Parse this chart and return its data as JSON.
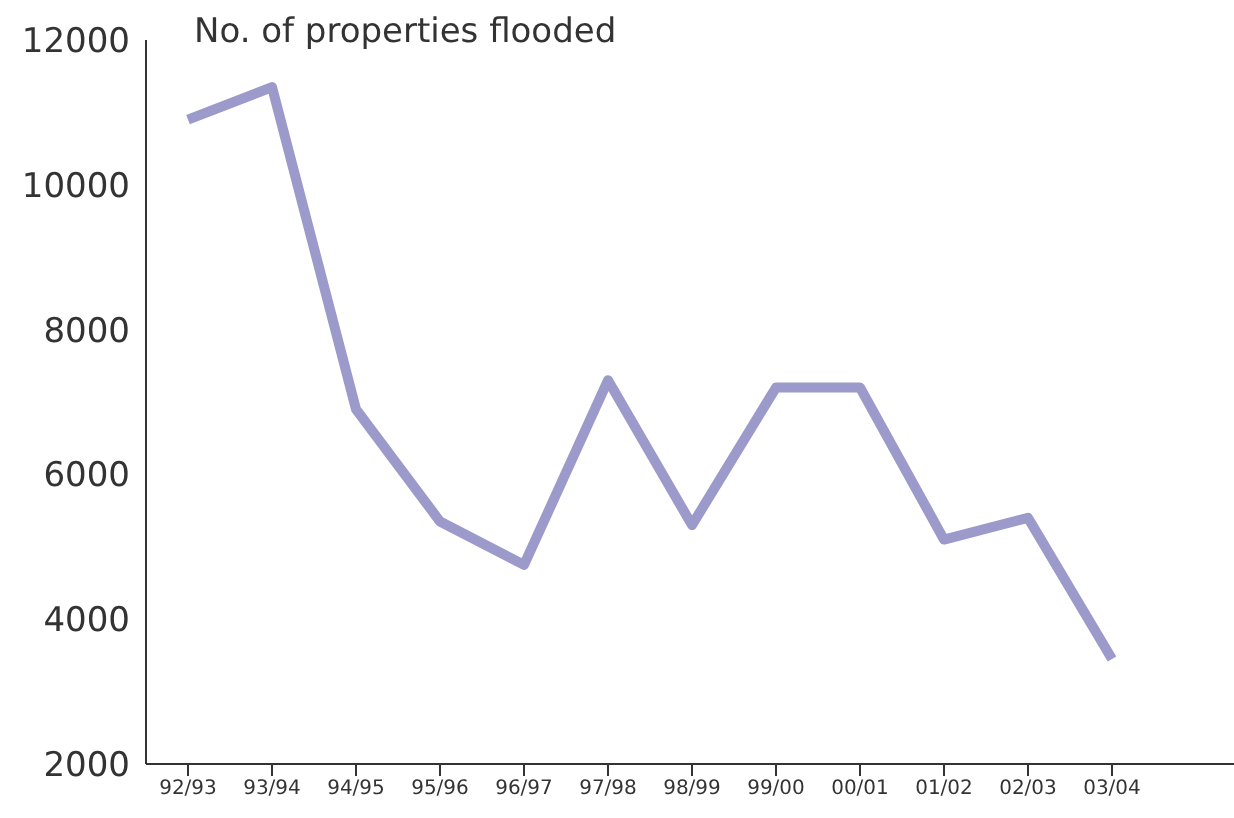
{
  "chart_data": {
    "type": "line",
    "ylabel": "No. of properties flooded",
    "categories": [
      "92/93",
      "93/94",
      "94/95",
      "95/96",
      "96/97",
      "97/98",
      "98/99",
      "99/00",
      "00/01",
      "01/02",
      "02/03",
      "03/04"
    ],
    "series": [
      {
        "color": "#9c99cb",
        "values": [
          10900,
          11350,
          6900,
          5350,
          4750,
          7300,
          5300,
          7200,
          7200,
          5100,
          5400,
          3450
        ]
      }
    ],
    "ylim": [
      2000,
      12000
    ],
    "yticks": [
      2000,
      4000,
      6000,
      8000,
      10000,
      12000
    ],
    "grid": false,
    "legend": false,
    "marker": "none",
    "line_style": "solid"
  }
}
